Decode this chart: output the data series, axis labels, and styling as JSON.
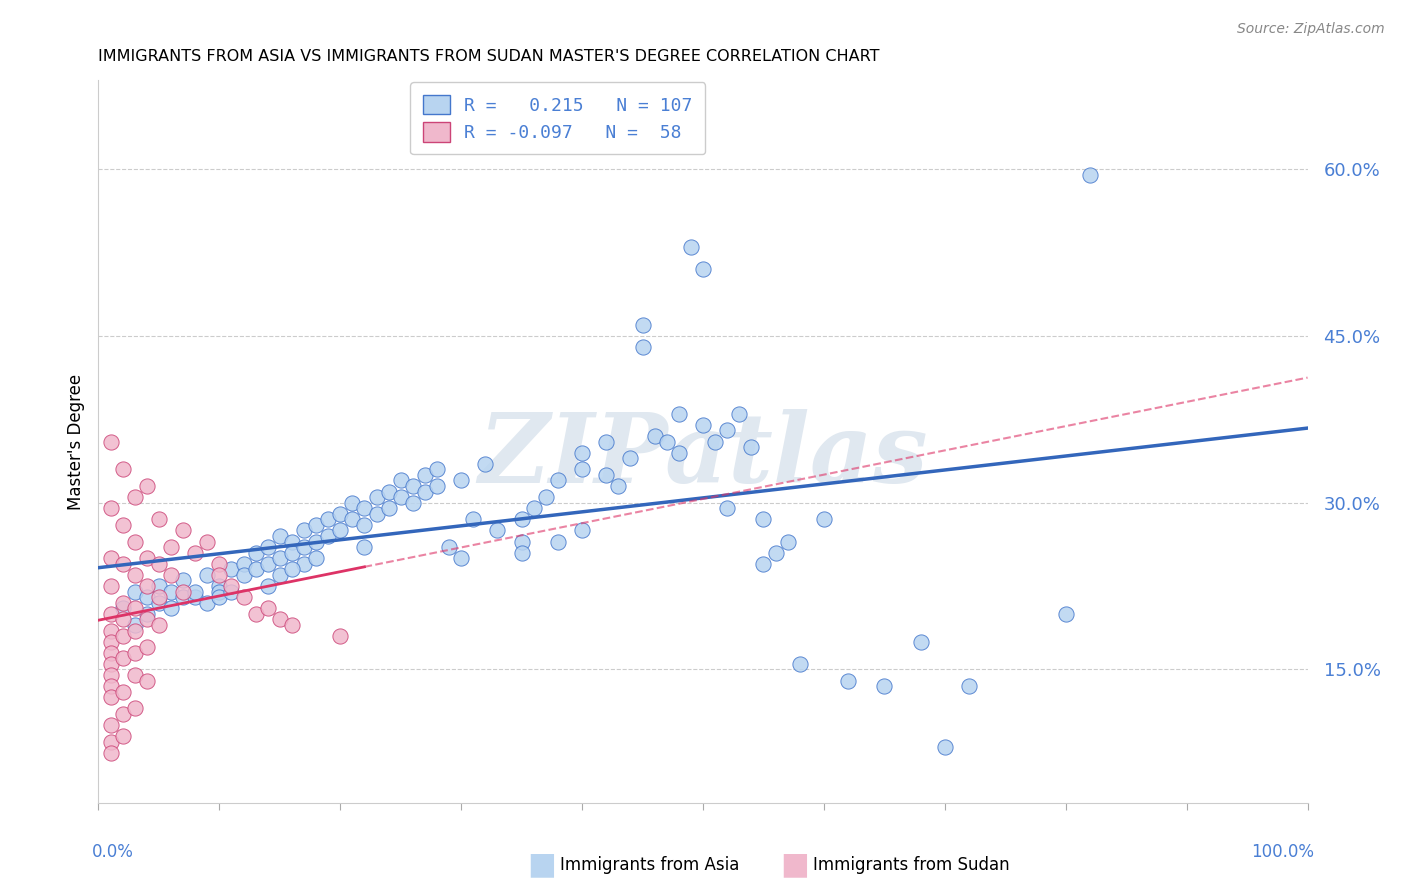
{
  "title": "IMMIGRANTS FROM ASIA VS IMMIGRANTS FROM SUDAN MASTER'S DEGREE CORRELATION CHART",
  "source": "Source: ZipAtlas.com",
  "ylabel": "Master's Degree",
  "xlim": [
    0.0,
    1.0
  ],
  "ylim": [
    0.03,
    0.68
  ],
  "yticks": [
    0.15,
    0.3,
    0.45,
    0.6
  ],
  "ytick_labels": [
    "15.0%",
    "30.0%",
    "45.0%",
    "60.0%"
  ],
  "xtick_positions": [
    0.0,
    0.1,
    0.2,
    0.3,
    0.4,
    0.5,
    0.6,
    0.7,
    0.8,
    0.9,
    1.0
  ],
  "color_asia": "#b8d4f0",
  "color_sudan": "#f0b8cc",
  "edge_color_asia": "#4477cc",
  "edge_color_sudan": "#cc4477",
  "line_color_asia": "#3366bb",
  "line_color_sudan": "#dd3366",
  "watermark": "ZIPatlas",
  "legend_label1": "R =   0.215   N = 107",
  "legend_label2": "R = -0.097   N =  58",
  "asia_x": [
    0.02,
    0.03,
    0.03,
    0.04,
    0.04,
    0.05,
    0.05,
    0.06,
    0.06,
    0.07,
    0.07,
    0.08,
    0.08,
    0.09,
    0.09,
    0.1,
    0.1,
    0.1,
    0.11,
    0.11,
    0.12,
    0.12,
    0.13,
    0.13,
    0.14,
    0.14,
    0.15,
    0.15,
    0.15,
    0.16,
    0.16,
    0.17,
    0.17,
    0.17,
    0.18,
    0.18,
    0.18,
    0.19,
    0.19,
    0.2,
    0.2,
    0.21,
    0.21,
    0.22,
    0.22,
    0.23,
    0.23,
    0.24,
    0.24,
    0.25,
    0.25,
    0.26,
    0.26,
    0.27,
    0.27,
    0.28,
    0.28,
    0.29,
    0.3,
    0.3,
    0.31,
    0.32,
    0.33,
    0.35,
    0.35,
    0.36,
    0.37,
    0.38,
    0.4,
    0.4,
    0.42,
    0.42,
    0.43,
    0.44,
    0.45,
    0.45,
    0.46,
    0.47,
    0.48,
    0.48,
    0.49,
    0.5,
    0.5,
    0.51,
    0.52,
    0.52,
    0.53,
    0.54,
    0.55,
    0.55,
    0.56,
    0.57,
    0.58,
    0.6,
    0.62,
    0.65,
    0.68,
    0.7,
    0.72,
    0.8,
    0.82,
    0.35,
    0.38,
    0.4,
    0.14,
    0.16,
    0.22
  ],
  "asia_y": [
    0.205,
    0.22,
    0.19,
    0.215,
    0.2,
    0.21,
    0.225,
    0.22,
    0.205,
    0.215,
    0.23,
    0.215,
    0.22,
    0.21,
    0.235,
    0.225,
    0.22,
    0.215,
    0.24,
    0.22,
    0.245,
    0.235,
    0.255,
    0.24,
    0.26,
    0.245,
    0.27,
    0.25,
    0.235,
    0.265,
    0.255,
    0.275,
    0.26,
    0.245,
    0.28,
    0.265,
    0.25,
    0.285,
    0.27,
    0.29,
    0.275,
    0.3,
    0.285,
    0.295,
    0.28,
    0.305,
    0.29,
    0.31,
    0.295,
    0.32,
    0.305,
    0.315,
    0.3,
    0.325,
    0.31,
    0.33,
    0.315,
    0.26,
    0.25,
    0.32,
    0.285,
    0.335,
    0.275,
    0.265,
    0.285,
    0.295,
    0.305,
    0.32,
    0.33,
    0.345,
    0.355,
    0.325,
    0.315,
    0.34,
    0.46,
    0.44,
    0.36,
    0.355,
    0.38,
    0.345,
    0.53,
    0.51,
    0.37,
    0.355,
    0.365,
    0.295,
    0.38,
    0.35,
    0.245,
    0.285,
    0.255,
    0.265,
    0.155,
    0.285,
    0.14,
    0.135,
    0.175,
    0.08,
    0.135,
    0.2,
    0.595,
    0.255,
    0.265,
    0.275,
    0.225,
    0.24,
    0.26
  ],
  "sudan_x": [
    0.01,
    0.01,
    0.01,
    0.01,
    0.01,
    0.01,
    0.01,
    0.01,
    0.01,
    0.01,
    0.01,
    0.01,
    0.01,
    0.01,
    0.01,
    0.02,
    0.02,
    0.02,
    0.02,
    0.02,
    0.02,
    0.02,
    0.02,
    0.02,
    0.02,
    0.03,
    0.03,
    0.03,
    0.03,
    0.03,
    0.03,
    0.03,
    0.03,
    0.04,
    0.04,
    0.04,
    0.04,
    0.04,
    0.04,
    0.05,
    0.05,
    0.05,
    0.05,
    0.06,
    0.06,
    0.07,
    0.07,
    0.08,
    0.09,
    0.1,
    0.1,
    0.11,
    0.12,
    0.13,
    0.14,
    0.15,
    0.16,
    0.2
  ],
  "sudan_y": [
    0.355,
    0.295,
    0.25,
    0.225,
    0.2,
    0.185,
    0.175,
    0.165,
    0.155,
    0.145,
    0.135,
    0.125,
    0.1,
    0.085,
    0.075,
    0.33,
    0.28,
    0.245,
    0.21,
    0.195,
    0.18,
    0.16,
    0.13,
    0.11,
    0.09,
    0.305,
    0.265,
    0.235,
    0.205,
    0.185,
    0.165,
    0.145,
    0.115,
    0.315,
    0.25,
    0.225,
    0.195,
    0.17,
    0.14,
    0.285,
    0.245,
    0.215,
    0.19,
    0.26,
    0.235,
    0.275,
    0.22,
    0.255,
    0.265,
    0.245,
    0.235,
    0.225,
    0.215,
    0.2,
    0.205,
    0.195,
    0.19,
    0.18
  ]
}
